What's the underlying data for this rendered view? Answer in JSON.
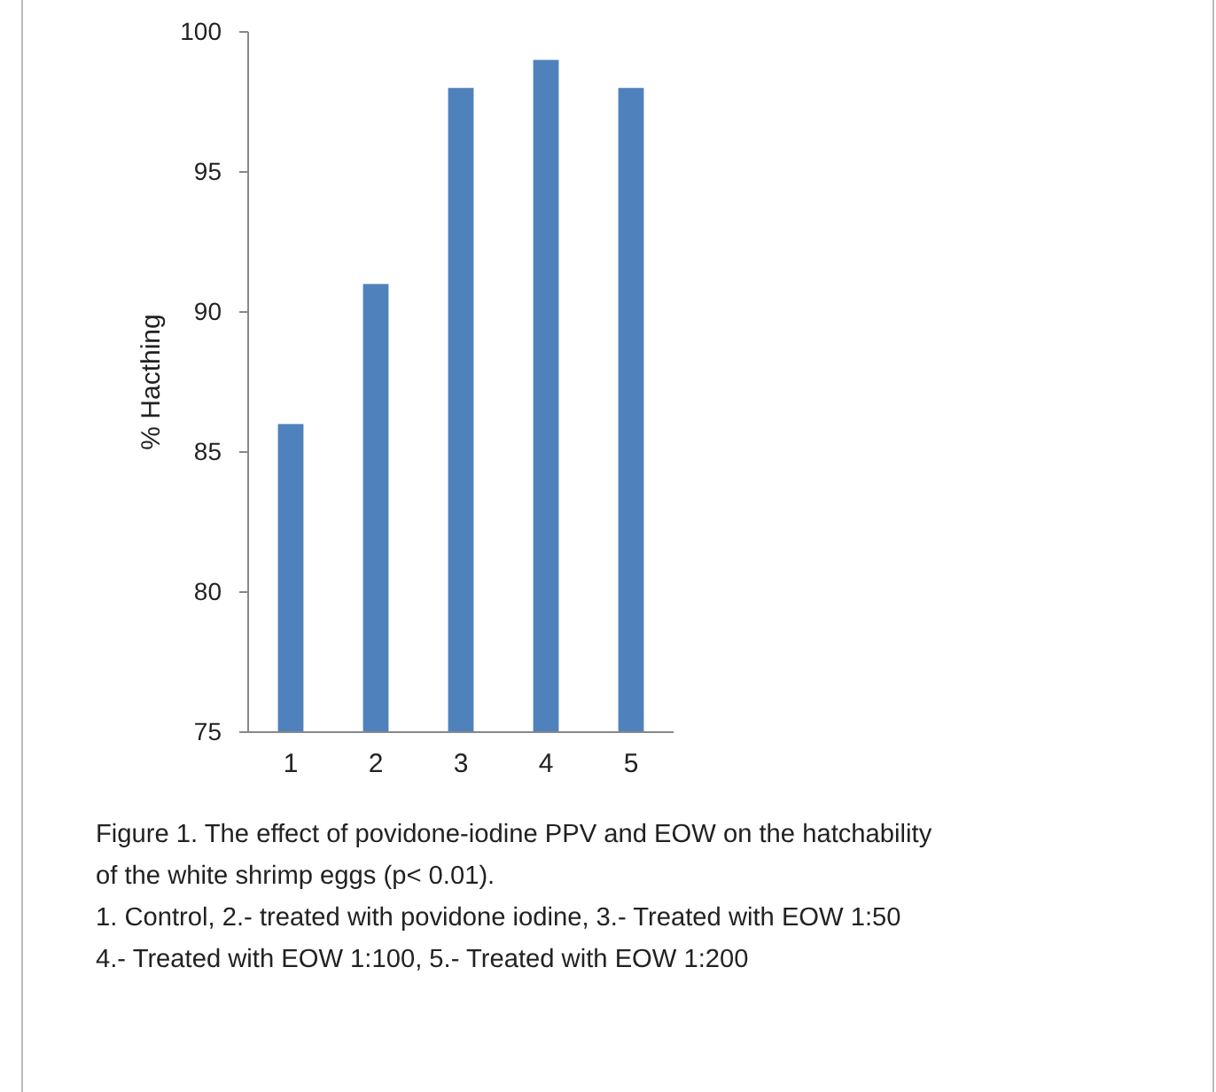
{
  "chart_data": {
    "type": "bar",
    "ylabel": "% Hacthing",
    "categories": [
      "1",
      "2",
      "3",
      "4",
      "5"
    ],
    "values": [
      86,
      91,
      98,
      99,
      98
    ],
    "color": "#4f81bd",
    "ylim": [
      75,
      100
    ],
    "yticks": [
      75,
      80,
      85,
      90,
      95,
      100
    ],
    "grid": false,
    "annotations": [
      "Figure 1. The effect of povidone-iodine PPV and EOW on the hatchability",
      "of the white shrimp eggs (p< 0.01).",
      "1. Control, 2.- treated with povidone iodine, 3.- Treated with EOW  1:50",
      "4.- Treated with EOW 1:100, 5.- Treated with EOW 1:200"
    ]
  }
}
